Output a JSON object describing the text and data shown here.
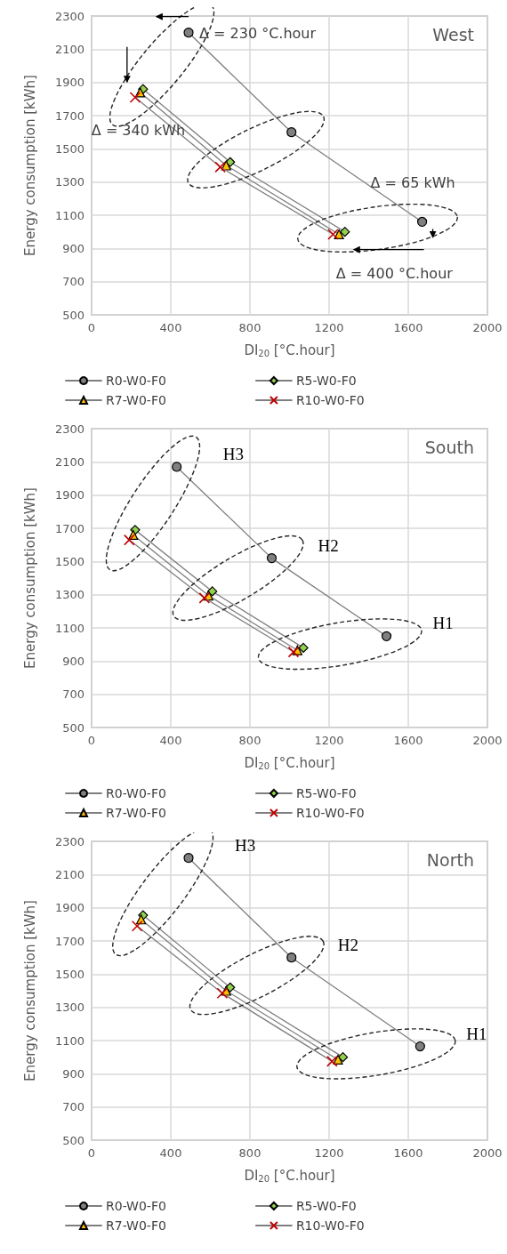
{
  "chart_data": [
    {
      "type": "line",
      "title": "West",
      "xlabel": "DI$_{20}$ [°C.hour]",
      "ylabel": "Energy consumption [kWh]",
      "xlim": [
        0,
        2000
      ],
      "xticks": [
        0,
        400,
        800,
        1200,
        1600,
        2000
      ],
      "ylim": [
        500,
        2300
      ],
      "yticks": [
        500,
        700,
        900,
        1100,
        1300,
        1500,
        1700,
        1900,
        2100,
        2300
      ],
      "grid": true,
      "legend": "bottom",
      "series": [
        {
          "name": "R0-W0-F0",
          "color": "#808080",
          "marker": "circle",
          "x": [
            490,
            1010,
            1670
          ],
          "values": [
            2200,
            1600,
            1060
          ]
        },
        {
          "name": "R5-W0-F0",
          "color": "#92d050",
          "marker": "diamond",
          "x": [
            260,
            700,
            1280
          ],
          "values": [
            1860,
            1420,
            1000
          ]
        },
        {
          "name": "R7-W0-F0",
          "color": "#ffc000",
          "marker": "triangle",
          "x": [
            245,
            680,
            1250
          ],
          "values": [
            1840,
            1400,
            985
          ]
        },
        {
          "name": "R10-W0-F0",
          "color": "#c00000",
          "marker": "cross",
          "x": [
            220,
            650,
            1220
          ],
          "values": [
            1810,
            1390,
            985
          ]
        }
      ],
      "annotations": [
        "Δ = 230 °C.hour",
        "Δ = 340 kWh",
        "Δ = 65 kWh",
        "Δ = 400 °C.hour"
      ]
    },
    {
      "type": "line",
      "title": "South",
      "xlabel": "DI$_{20}$ [°C.hour]",
      "ylabel": "Energy consumption [kWh]",
      "xlim": [
        0,
        2000
      ],
      "xticks": [
        0,
        400,
        800,
        1200,
        1600,
        2000
      ],
      "ylim": [
        500,
        2300
      ],
      "yticks": [
        500,
        700,
        900,
        1100,
        1300,
        1500,
        1700,
        1900,
        2100,
        2300
      ],
      "grid": true,
      "legend": "bottom",
      "series": [
        {
          "name": "R0-W0-F0",
          "color": "#808080",
          "marker": "circle",
          "x": [
            430,
            910,
            1490
          ],
          "values": [
            2070,
            1520,
            1050
          ]
        },
        {
          "name": "R5-W0-F0",
          "color": "#92d050",
          "marker": "diamond",
          "x": [
            220,
            610,
            1070
          ],
          "values": [
            1690,
            1320,
            980
          ]
        },
        {
          "name": "R7-W0-F0",
          "color": "#ffc000",
          "marker": "triangle",
          "x": [
            210,
            590,
            1040
          ],
          "values": [
            1660,
            1295,
            965
          ]
        },
        {
          "name": "R10-W0-F0",
          "color": "#c00000",
          "marker": "cross",
          "x": [
            190,
            570,
            1020
          ],
          "values": [
            1630,
            1280,
            955
          ]
        }
      ],
      "annotations": [
        "H3",
        "H2",
        "H1"
      ]
    },
    {
      "type": "line",
      "title": "North",
      "xlabel": "DI$_{20}$ [°C.hour]",
      "ylabel": "Energy consumption [kWh]",
      "xlim": [
        0,
        2000
      ],
      "xticks": [
        0,
        400,
        800,
        1200,
        1600,
        2000
      ],
      "ylim": [
        500,
        2300
      ],
      "yticks": [
        500,
        700,
        900,
        1100,
        1300,
        1500,
        1700,
        1900,
        2100,
        2300
      ],
      "grid": true,
      "legend": "bottom",
      "series": [
        {
          "name": "R0-W0-F0",
          "color": "#808080",
          "marker": "circle",
          "x": [
            490,
            1010,
            1660
          ],
          "values": [
            2200,
            1600,
            1065
          ]
        },
        {
          "name": "R5-W0-F0",
          "color": "#92d050",
          "marker": "diamond",
          "x": [
            260,
            700,
            1270
          ],
          "values": [
            1855,
            1420,
            1000
          ]
        },
        {
          "name": "R7-W0-F0",
          "color": "#ffc000",
          "marker": "triangle",
          "x": [
            250,
            680,
            1245
          ],
          "values": [
            1830,
            1400,
            985
          ]
        },
        {
          "name": "R10-W0-F0",
          "color": "#c00000",
          "marker": "cross",
          "x": [
            230,
            660,
            1215
          ],
          "values": [
            1790,
            1385,
            975
          ]
        }
      ],
      "annotations": [
        "H3",
        "H2",
        "H1"
      ]
    }
  ]
}
